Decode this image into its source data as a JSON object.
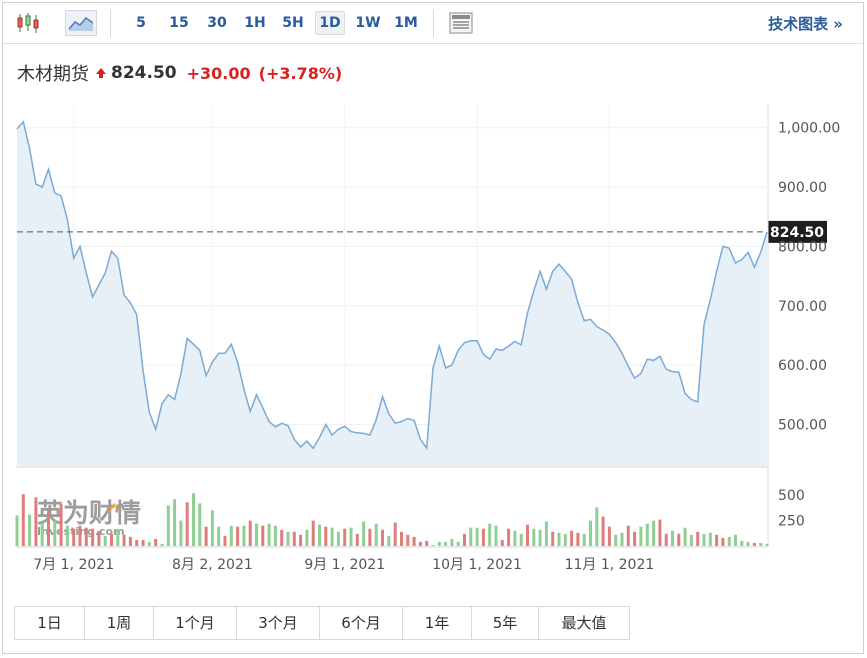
{
  "toolbar": {
    "timeframes": [
      "5",
      "15",
      "30",
      "1H",
      "5H",
      "1D",
      "1W",
      "1M"
    ],
    "active_timeframe": "1D",
    "tech_chart_label": "技术图表 »"
  },
  "quote": {
    "name": "木材期货",
    "price": "824.50",
    "change": "+30.00",
    "change_pct": "(+3.78%)",
    "direction": "up"
  },
  "periods": [
    "1日",
    "1周",
    "1个月",
    "3个月",
    "6个月",
    "1年",
    "5年",
    "最大值"
  ],
  "colors": {
    "line": "#7aaad6",
    "area_fill": "#e7eff7",
    "volume_up": "#8fcf94",
    "volume_down": "#df7c7c",
    "up_text": "#d92121",
    "link": "#2a5b9b"
  },
  "chart_data": {
    "type": "area",
    "current_value_label": "824.50",
    "current_value": 824.5,
    "price_axis": {
      "ticks": [
        "1,000.00",
        "900.00",
        "800.00",
        "700.00",
        "600.00",
        "500.00"
      ],
      "range": [
        430,
        1040
      ]
    },
    "volume_axis": {
      "ticks": [
        "500",
        "250"
      ],
      "range": [
        0,
        650
      ]
    },
    "x_ticks": [
      "7月 1, 2021",
      "8月 2, 2021",
      "9月 1, 2021",
      "10月 1, 2021",
      "11月 1, 2021"
    ],
    "x_tick_index": [
      9,
      31,
      52,
      73,
      94
    ],
    "values": [
      998,
      1010,
      965,
      905,
      900,
      930,
      890,
      885,
      845,
      780,
      800,
      755,
      715,
      735,
      755,
      792,
      780,
      718,
      705,
      685,
      590,
      520,
      492,
      535,
      550,
      542,
      585,
      645,
      635,
      625,
      582,
      605,
      620,
      620,
      635,
      605,
      560,
      522,
      550,
      528,
      505,
      496,
      502,
      498,
      475,
      462,
      472,
      460,
      478,
      500,
      482,
      492,
      497,
      488,
      486,
      485,
      482,
      508,
      547,
      518,
      502,
      505,
      510,
      507,
      475,
      460,
      595,
      632,
      595,
      600,
      625,
      638,
      641,
      641,
      618,
      610,
      627,
      625,
      632,
      640,
      634,
      688,
      725,
      758,
      728,
      758,
      770,
      758,
      745,
      705,
      675,
      677,
      665,
      659,
      652,
      638,
      620,
      598,
      578,
      586,
      610,
      608,
      615,
      593,
      589,
      588,
      552,
      542,
      538,
      668,
      710,
      758,
      800,
      797,
      772,
      778,
      790,
      765,
      790,
      824.5
    ],
    "volume": [
      300,
      510,
      310,
      480,
      230,
      360,
      250,
      410,
      200,
      170,
      200,
      180,
      170,
      150,
      100,
      120,
      160,
      110,
      90,
      60,
      60,
      40,
      70,
      20,
      400,
      460,
      250,
      430,
      520,
      420,
      190,
      350,
      190,
      100,
      200,
      190,
      200,
      250,
      220,
      200,
      220,
      200,
      160,
      140,
      140,
      110,
      160,
      250,
      210,
      190,
      180,
      140,
      170,
      180,
      120,
      240,
      170,
      220,
      160,
      100,
      230,
      140,
      110,
      90,
      40,
      50,
      10,
      40,
      40,
      70,
      40,
      120,
      180,
      180,
      170,
      220,
      200,
      60,
      170,
      150,
      120,
      210,
      170,
      160,
      240,
      140,
      130,
      120,
      150,
      130,
      120,
      250,
      380,
      290,
      190,
      110,
      130,
      200,
      140,
      190,
      220,
      250,
      260,
      120,
      150,
      120,
      180,
      110,
      140,
      120,
      130,
      110,
      80,
      90,
      110,
      50,
      40,
      30,
      30,
      20
    ],
    "volume_up": [
      1,
      0,
      1,
      0,
      1,
      0,
      1,
      0,
      1,
      0,
      0,
      0,
      0,
      0,
      1,
      0,
      1,
      0,
      0,
      0,
      0,
      1,
      0,
      1,
      1,
      1,
      1,
      0,
      1,
      1,
      0,
      1,
      1,
      0,
      1,
      0,
      1,
      0,
      1,
      0,
      1,
      1,
      0,
      1,
      0,
      0,
      1,
      0,
      1,
      0,
      1,
      1,
      0,
      1,
      0,
      1,
      0,
      1,
      0,
      1,
      0,
      0,
      0,
      0,
      0,
      0,
      1,
      1,
      1,
      1,
      1,
      0,
      1,
      1,
      0,
      1,
      1,
      0,
      0,
      1,
      1,
      0,
      1,
      1,
      1,
      0,
      1,
      1,
      0,
      0,
      1,
      1,
      1,
      0,
      0,
      1,
      1,
      0,
      0,
      1,
      1,
      1,
      0,
      0,
      1,
      0,
      1,
      1,
      0,
      1,
      1,
      0,
      0,
      1,
      1,
      1,
      1,
      0,
      1,
      1
    ]
  }
}
